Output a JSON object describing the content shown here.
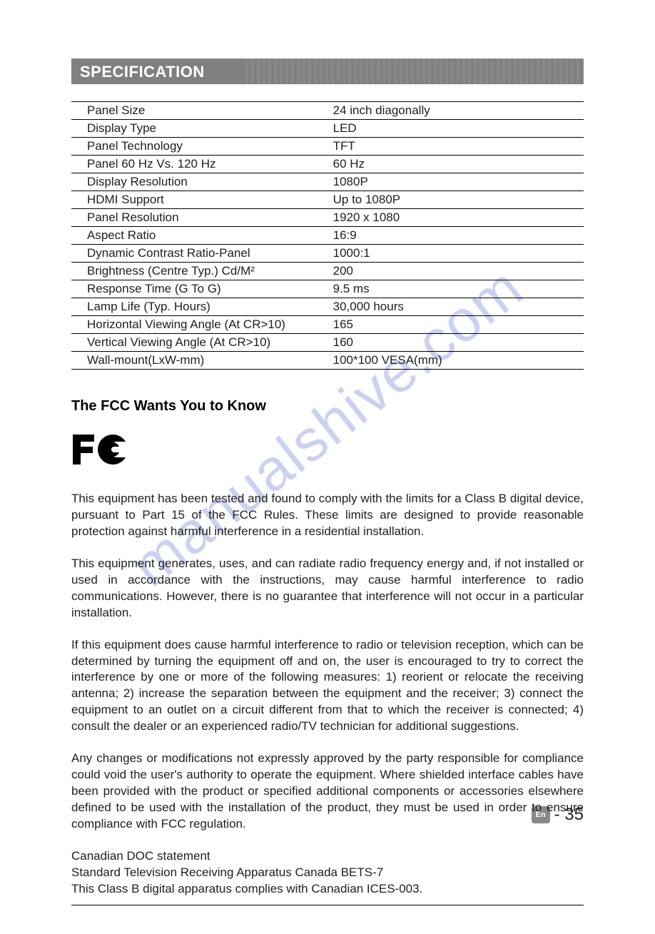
{
  "header": {
    "title": "SPECIFICATION"
  },
  "spec_table": {
    "rows": [
      {
        "label": "Panel Size",
        "value": "24 inch diagonally"
      },
      {
        "label": "Display Type",
        "value": "LED"
      },
      {
        "label": "Panel Technology",
        "value": "TFT"
      },
      {
        "label": "Panel 60 Hz Vs. 120 Hz",
        "value": "60 Hz"
      },
      {
        "label": "Display Resolution",
        "value": "1080P"
      },
      {
        "label": "HDMI Support",
        "value": "Up to 1080P"
      },
      {
        "label": "Panel Resolution",
        "value": "1920 x 1080"
      },
      {
        "label": "Aspect Ratio",
        "value": "16:9"
      },
      {
        "label": "Dynamic Contrast Ratio-Panel",
        "value": "1000:1"
      },
      {
        "label": "Brightness (Centre Typ.) Cd/M²",
        "value": "200"
      },
      {
        "label": "Response Time (G To G)",
        "value": "9.5 ms"
      },
      {
        "label": "Lamp Life (Typ. Hours)",
        "value": "30,000 hours"
      },
      {
        "label": "Horizontal Viewing Angle (At CR>10)",
        "value": "165"
      },
      {
        "label": "Vertical Viewing Angle (At CR>10)",
        "value": "160"
      },
      {
        "label": "Wall-mount(LxW-mm)",
        "value": "100*100 VESA(mm)"
      }
    ]
  },
  "fcc": {
    "title": "The FCC Wants You to Know",
    "paragraphs": [
      "This equipment has been tested and found to comply with the limits for a Class B digital device, pursuant to Part 15 of the FCC Rules. These limits are designed to provide reasonable protection against harmful interference in a residential installation.",
      "This equipment generates, uses, and can radiate radio frequency energy and, if not installed or used in accordance with the instructions, may cause harmful interference to radio communications. However, there is no guarantee that interference will not occur in a particular installation.",
      "If this equipment does cause harmful interference to radio or television reception, which can be determined by turning the equipment off and on, the user is encouraged to try to correct the interference by one or more of the following measures: 1) reorient or relocate the receiving antenna; 2) increase the separation between the equipment and the receiver; 3) connect the equipment to an outlet on a circuit different from that to which the receiver is connected; 4) consult the dealer or an experienced radio/TV technician for additional suggestions.",
      "Any changes or modifications not expressly approved by the party responsible for compliance could void the user's authority to operate the equipment. Where shielded interface cables have been provided with the product or specified additional components or accessories elsewhere defined to be used with the installation of the product, they must be used in order to ensure compliance with FCC regulation."
    ],
    "doc_lines": [
      "Canadian DOC statement",
      "Standard Television Receiving Apparatus Canada BETS-7",
      "This Class B digital apparatus complies with Canadian ICES-003."
    ]
  },
  "footer": {
    "lang_badge": "En",
    "page_num": "- 35"
  },
  "watermark": "manualshive.com"
}
